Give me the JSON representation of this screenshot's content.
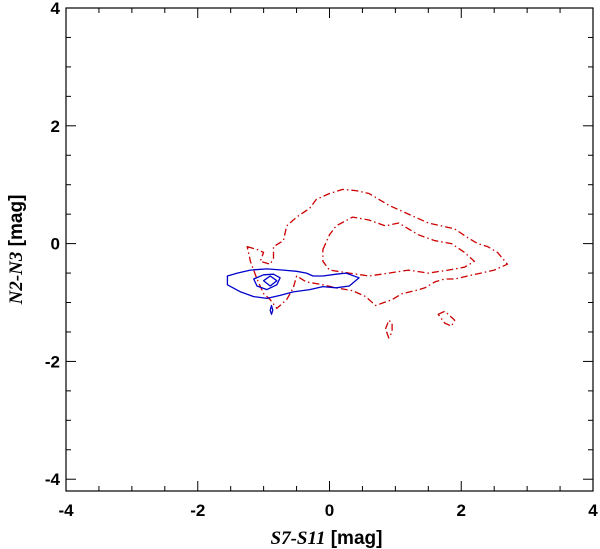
{
  "chart_data": {
    "type": "contour",
    "xlabel": {
      "name": "S7-S11",
      "unit": " [mag]"
    },
    "ylabel": {
      "name": "N2-N3",
      "unit": " [mag]"
    },
    "xlim": [
      -4,
      4
    ],
    "ylim": [
      -4.2,
      4
    ],
    "x_ticks": [
      -4,
      -2,
      0,
      2,
      4
    ],
    "x_tick_labels": [
      "-4",
      "-2",
      "0",
      "2",
      "4"
    ],
    "y_ticks": [
      -4,
      -2,
      0,
      2,
      4
    ],
    "y_tick_labels": [
      "-4",
      "-2",
      "0",
      "2",
      "4"
    ],
    "x_minor_step": 0.5,
    "y_minor_step": 0.5,
    "grid": false,
    "legend": "none",
    "series": [
      {
        "color": "#cc0000",
        "linestyle": "dash-dot",
        "contours": [
          [
            [
              -1.25,
              -0.05
            ],
            [
              -1.1,
              -0.1
            ],
            [
              -1.0,
              -0.15
            ],
            [
              -1.05,
              -0.3
            ],
            [
              -0.9,
              -0.35
            ],
            [
              -0.85,
              -0.25
            ],
            [
              -0.85,
              -0.05
            ],
            [
              -0.7,
              0.05
            ],
            [
              -0.65,
              0.3
            ],
            [
              -0.5,
              0.45
            ],
            [
              -0.3,
              0.6
            ],
            [
              -0.2,
              0.75
            ],
            [
              0.0,
              0.85
            ],
            [
              0.2,
              0.92
            ],
            [
              0.4,
              0.9
            ],
            [
              0.6,
              0.85
            ],
            [
              0.75,
              0.75
            ],
            [
              0.9,
              0.65
            ],
            [
              1.1,
              0.55
            ],
            [
              1.3,
              0.45
            ],
            [
              1.5,
              0.35
            ],
            [
              1.7,
              0.3
            ],
            [
              1.9,
              0.25
            ],
            [
              2.1,
              0.1
            ],
            [
              2.25,
              0.0
            ],
            [
              2.4,
              -0.05
            ],
            [
              2.55,
              -0.15
            ],
            [
              2.7,
              -0.35
            ],
            [
              2.5,
              -0.45
            ],
            [
              2.3,
              -0.5
            ],
            [
              2.1,
              -0.55
            ],
            [
              1.9,
              -0.6
            ],
            [
              1.75,
              -0.6
            ],
            [
              1.6,
              -0.65
            ],
            [
              1.45,
              -0.75
            ],
            [
              1.3,
              -0.8
            ],
            [
              1.1,
              -0.85
            ],
            [
              0.95,
              -0.95
            ],
            [
              0.7,
              -1.05
            ],
            [
              0.55,
              -0.9
            ],
            [
              0.35,
              -0.8
            ],
            [
              0.1,
              -0.75
            ],
            [
              -0.1,
              -0.7
            ],
            [
              -0.35,
              -0.65
            ],
            [
              -0.5,
              -0.55
            ],
            [
              -0.55,
              -0.75
            ],
            [
              -0.65,
              -0.95
            ],
            [
              -0.8,
              -1.1
            ],
            [
              -0.9,
              -0.95
            ],
            [
              -1.0,
              -0.85
            ],
            [
              -1.1,
              -0.6
            ],
            [
              -1.2,
              -0.3
            ],
            [
              -1.25,
              -0.05
            ]
          ],
          [
            [
              -0.1,
              -0.1
            ],
            [
              0.0,
              0.15
            ],
            [
              0.1,
              0.3
            ],
            [
              0.35,
              0.45
            ],
            [
              0.6,
              0.4
            ],
            [
              0.85,
              0.3
            ],
            [
              1.05,
              0.35
            ],
            [
              1.35,
              0.15
            ],
            [
              1.6,
              0.05
            ],
            [
              1.85,
              0.0
            ],
            [
              2.05,
              -0.15
            ],
            [
              2.2,
              -0.3
            ],
            [
              2.05,
              -0.4
            ],
            [
              1.8,
              -0.45
            ],
            [
              1.5,
              -0.5
            ],
            [
              1.2,
              -0.45
            ],
            [
              0.9,
              -0.5
            ],
            [
              0.6,
              -0.55
            ],
            [
              0.3,
              -0.5
            ],
            [
              0.0,
              -0.45
            ],
            [
              -0.1,
              -0.3
            ],
            [
              -0.1,
              -0.1
            ]
          ],
          [
            [
              0.85,
              -1.45
            ],
            [
              0.9,
              -1.3
            ],
            [
              0.95,
              -1.35
            ],
            [
              0.95,
              -1.5
            ],
            [
              0.9,
              -1.6
            ],
            [
              0.85,
              -1.45
            ]
          ],
          [
            [
              1.65,
              -1.2
            ],
            [
              1.75,
              -1.15
            ],
            [
              1.9,
              -1.3
            ],
            [
              1.85,
              -1.4
            ],
            [
              1.75,
              -1.35
            ],
            [
              1.65,
              -1.2
            ]
          ]
        ]
      },
      {
        "color": "#0000cc",
        "linestyle": "solid",
        "contours": [
          [
            [
              -1.55,
              -0.55
            ],
            [
              -1.4,
              -0.5
            ],
            [
              -1.2,
              -0.45
            ],
            [
              -0.95,
              -0.43
            ],
            [
              -0.7,
              -0.45
            ],
            [
              -0.5,
              -0.47
            ],
            [
              -0.35,
              -0.5
            ],
            [
              -0.25,
              -0.55
            ],
            [
              -0.1,
              -0.55
            ],
            [
              0.1,
              -0.52
            ],
            [
              0.25,
              -0.5
            ],
            [
              0.45,
              -0.58
            ],
            [
              0.3,
              -0.72
            ],
            [
              0.1,
              -0.75
            ],
            [
              -0.1,
              -0.73
            ],
            [
              -0.3,
              -0.78
            ],
            [
              -0.55,
              -0.82
            ],
            [
              -0.75,
              -0.88
            ],
            [
              -0.95,
              -0.93
            ],
            [
              -1.15,
              -0.9
            ],
            [
              -1.35,
              -0.82
            ],
            [
              -1.55,
              -0.7
            ],
            [
              -1.55,
              -0.55
            ]
          ],
          [
            [
              -1.15,
              -0.6
            ],
            [
              -1.0,
              -0.53
            ],
            [
              -0.85,
              -0.52
            ],
            [
              -0.75,
              -0.58
            ],
            [
              -0.8,
              -0.7
            ],
            [
              -0.95,
              -0.78
            ],
            [
              -1.1,
              -0.72
            ],
            [
              -1.15,
              -0.6
            ]
          ],
          [
            [
              -1.0,
              -0.63
            ],
            [
              -0.9,
              -0.55
            ],
            [
              -0.8,
              -0.63
            ],
            [
              -0.9,
              -0.72
            ],
            [
              -1.0,
              -0.63
            ]
          ],
          [
            [
              -0.9,
              -1.13
            ],
            [
              -0.88,
              -1.05
            ],
            [
              -0.86,
              -1.13
            ],
            [
              -0.88,
              -1.2
            ],
            [
              -0.9,
              -1.13
            ]
          ]
        ]
      }
    ]
  }
}
